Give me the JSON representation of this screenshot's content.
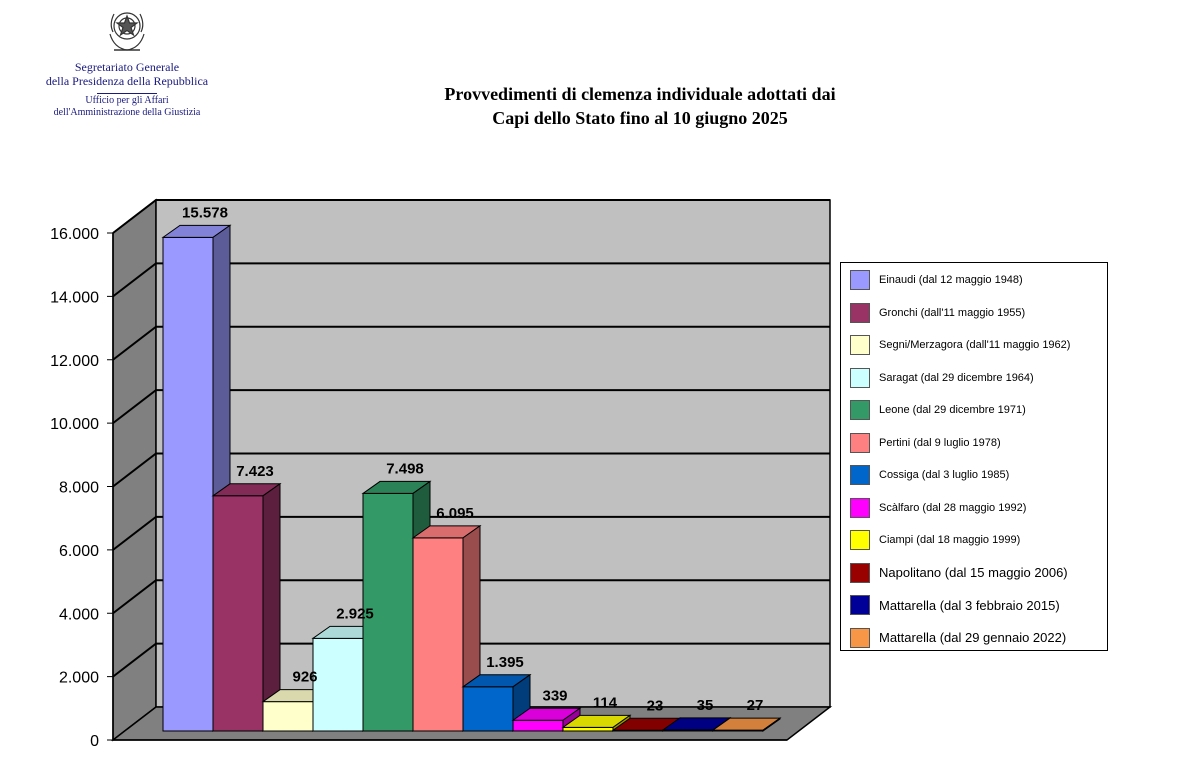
{
  "header": {
    "org_line1": "Segretariato Generale",
    "org_line2": "della Presidenza della Repubblica",
    "org_line3": "Ufficio per gli Affari",
    "org_line4": "dell'Amministrazione della Giustizia",
    "emblem_icon": "italian-republic-emblem-icon"
  },
  "title_line1": "Provvedimenti di clemenza individuale adottati dai",
  "title_line2": "Capi dello Stato fino al 10 giugno 2025",
  "chart_data": {
    "type": "bar",
    "title": "Provvedimenti di clemenza individuale adottati dai Capi dello Stato fino al 10 giugno 2025",
    "xlabel": "",
    "ylabel": "",
    "ylim": [
      0,
      16000
    ],
    "yticks": [
      0,
      2000,
      4000,
      6000,
      8000,
      10000,
      12000,
      14000,
      16000
    ],
    "ytick_labels": [
      "0",
      "2.000",
      "4.000",
      "6.000",
      "8.000",
      "10.000",
      "12.000",
      "14.000",
      "16.000"
    ],
    "grid": true,
    "legend_position": "right",
    "series": [
      {
        "name": "Einaudi (dal 12 maggio 1948)",
        "value": 15578,
        "label": "15.578",
        "color": "#9999ff",
        "legend_big": false
      },
      {
        "name": "Gronchi (dall'11 maggio 1955)",
        "value": 7423,
        "label": "7.423",
        "color": "#993366",
        "legend_big": false
      },
      {
        "name": "Segni/Merzagora (dall'11 maggio 1962)",
        "value": 926,
        "label": "926",
        "color": "#ffffcc",
        "legend_big": false
      },
      {
        "name": "Saragat (dal 29 dicembre 1964)",
        "value": 2925,
        "label": "2.925",
        "color": "#ccffff",
        "legend_big": false
      },
      {
        "name": "Leone (dal 29 dicembre 1971)",
        "value": 7498,
        "label": "7.498",
        "color": "#339966",
        "legend_big": false
      },
      {
        "name": "Pertini (dal 9 luglio 1978)",
        "value": 6095,
        "label": "6.095",
        "color": "#ff8080",
        "legend_big": false
      },
      {
        "name": "Cossiga (dal 3 luglio 1985)",
        "value": 1395,
        "label": "1.395",
        "color": "#0066cc",
        "legend_big": false
      },
      {
        "name": "Scàlfaro (dal 28 maggio 1992)",
        "value": 339,
        "label": "339",
        "color": "#ff00ff",
        "legend_big": false
      },
      {
        "name": "Ciampi (dal 18 maggio 1999)",
        "value": 114,
        "label": "114",
        "color": "#ffff00",
        "legend_big": false
      },
      {
        "name": "Napolitano (dal 15 maggio 2006)",
        "value": 23,
        "label": "23",
        "color": "#990000",
        "legend_big": true
      },
      {
        "name": "Mattarella (dal 3 febbraio  2015)",
        "value": 35,
        "label": "35",
        "color": "#000099",
        "legend_big": true
      },
      {
        "name": "Mattarella (dal 29 gennaio 2022)",
        "value": 27,
        "label": "27",
        "color": "#f79646",
        "legend_big": true
      }
    ]
  }
}
